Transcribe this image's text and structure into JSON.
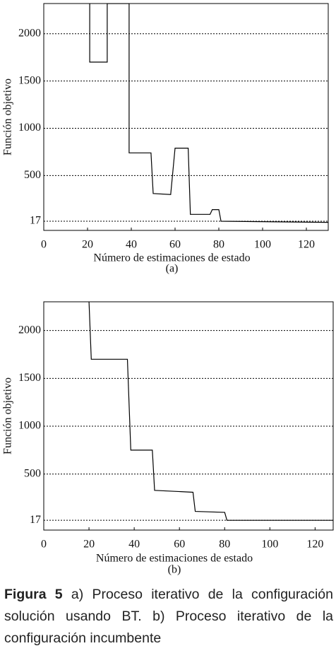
{
  "chart_data": [
    {
      "type": "line",
      "label": "(a)",
      "x_label": "Número de estimaciones de estado",
      "y_label": "Función objetivo",
      "x": [
        21,
        21,
        29,
        29,
        39,
        39,
        49,
        50,
        58,
        60,
        66,
        67,
        76,
        77,
        80,
        81,
        130
      ],
      "values": [
        2320,
        1700,
        1700,
        2320,
        2320,
        740,
        740,
        310,
        300,
        790,
        790,
        90,
        90,
        140,
        140,
        17,
        5
      ],
      "color": "#000000",
      "xlim": [
        0,
        130
      ],
      "xticks": [
        0,
        20,
        40,
        60,
        80,
        100,
        120
      ],
      "ylim": [
        -80,
        2320
      ],
      "yticks": [
        17,
        500,
        1000,
        1500,
        2000
      ],
      "grid": true
    },
    {
      "type": "line",
      "label": "(b)",
      "x_label": "Número de estimaciones de estado",
      "y_label": "Función objetivo",
      "x": [
        20,
        21,
        37,
        38.5,
        48,
        49,
        66,
        67,
        80,
        81,
        128
      ],
      "values": [
        2300,
        1700,
        1700,
        750,
        750,
        330,
        310,
        110,
        100,
        17,
        17
      ],
      "color": "#000000",
      "xlim": [
        0,
        128
      ],
      "xticks": [
        0,
        20,
        40,
        60,
        80,
        100,
        120
      ],
      "ylim": [
        -85,
        2300
      ],
      "yticks": [
        17,
        500,
        1000,
        1500,
        2000
      ],
      "grid": true
    }
  ],
  "caption": {
    "label": "Figura 5",
    "text": "a) Proceso iterativo de la configuración solución usando BT. b) Proceso iterativo de la configuración incumbente"
  }
}
